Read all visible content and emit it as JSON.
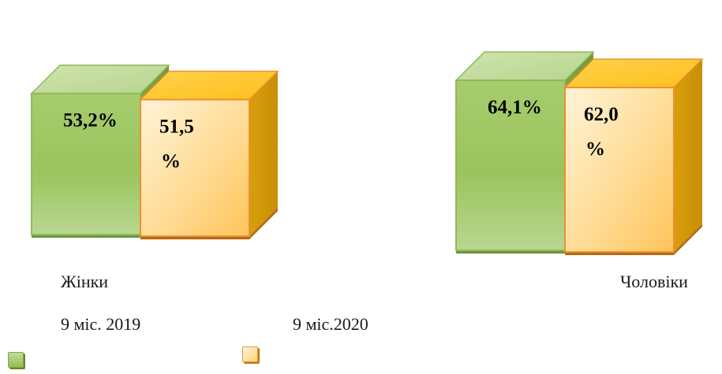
{
  "chart_data": {
    "type": "bar",
    "categories": [
      "Жінки",
      "Чоловіки"
    ],
    "series": [
      {
        "name": "9 міс. 2019",
        "values": [
          53.2,
          64.1
        ],
        "labels": [
          "53,2%",
          "64,1%"
        ],
        "color": "#9bc45d"
      },
      {
        "name": "9 міс.2020",
        "values": [
          51.5,
          62.0
        ],
        "labels": [
          "51,5\n%",
          "62,0\n%"
        ],
        "color": "#ffc75a"
      }
    ],
    "title": "",
    "xlabel": "",
    "ylabel": "",
    "legend": "bottom-left",
    "grid": false
  }
}
